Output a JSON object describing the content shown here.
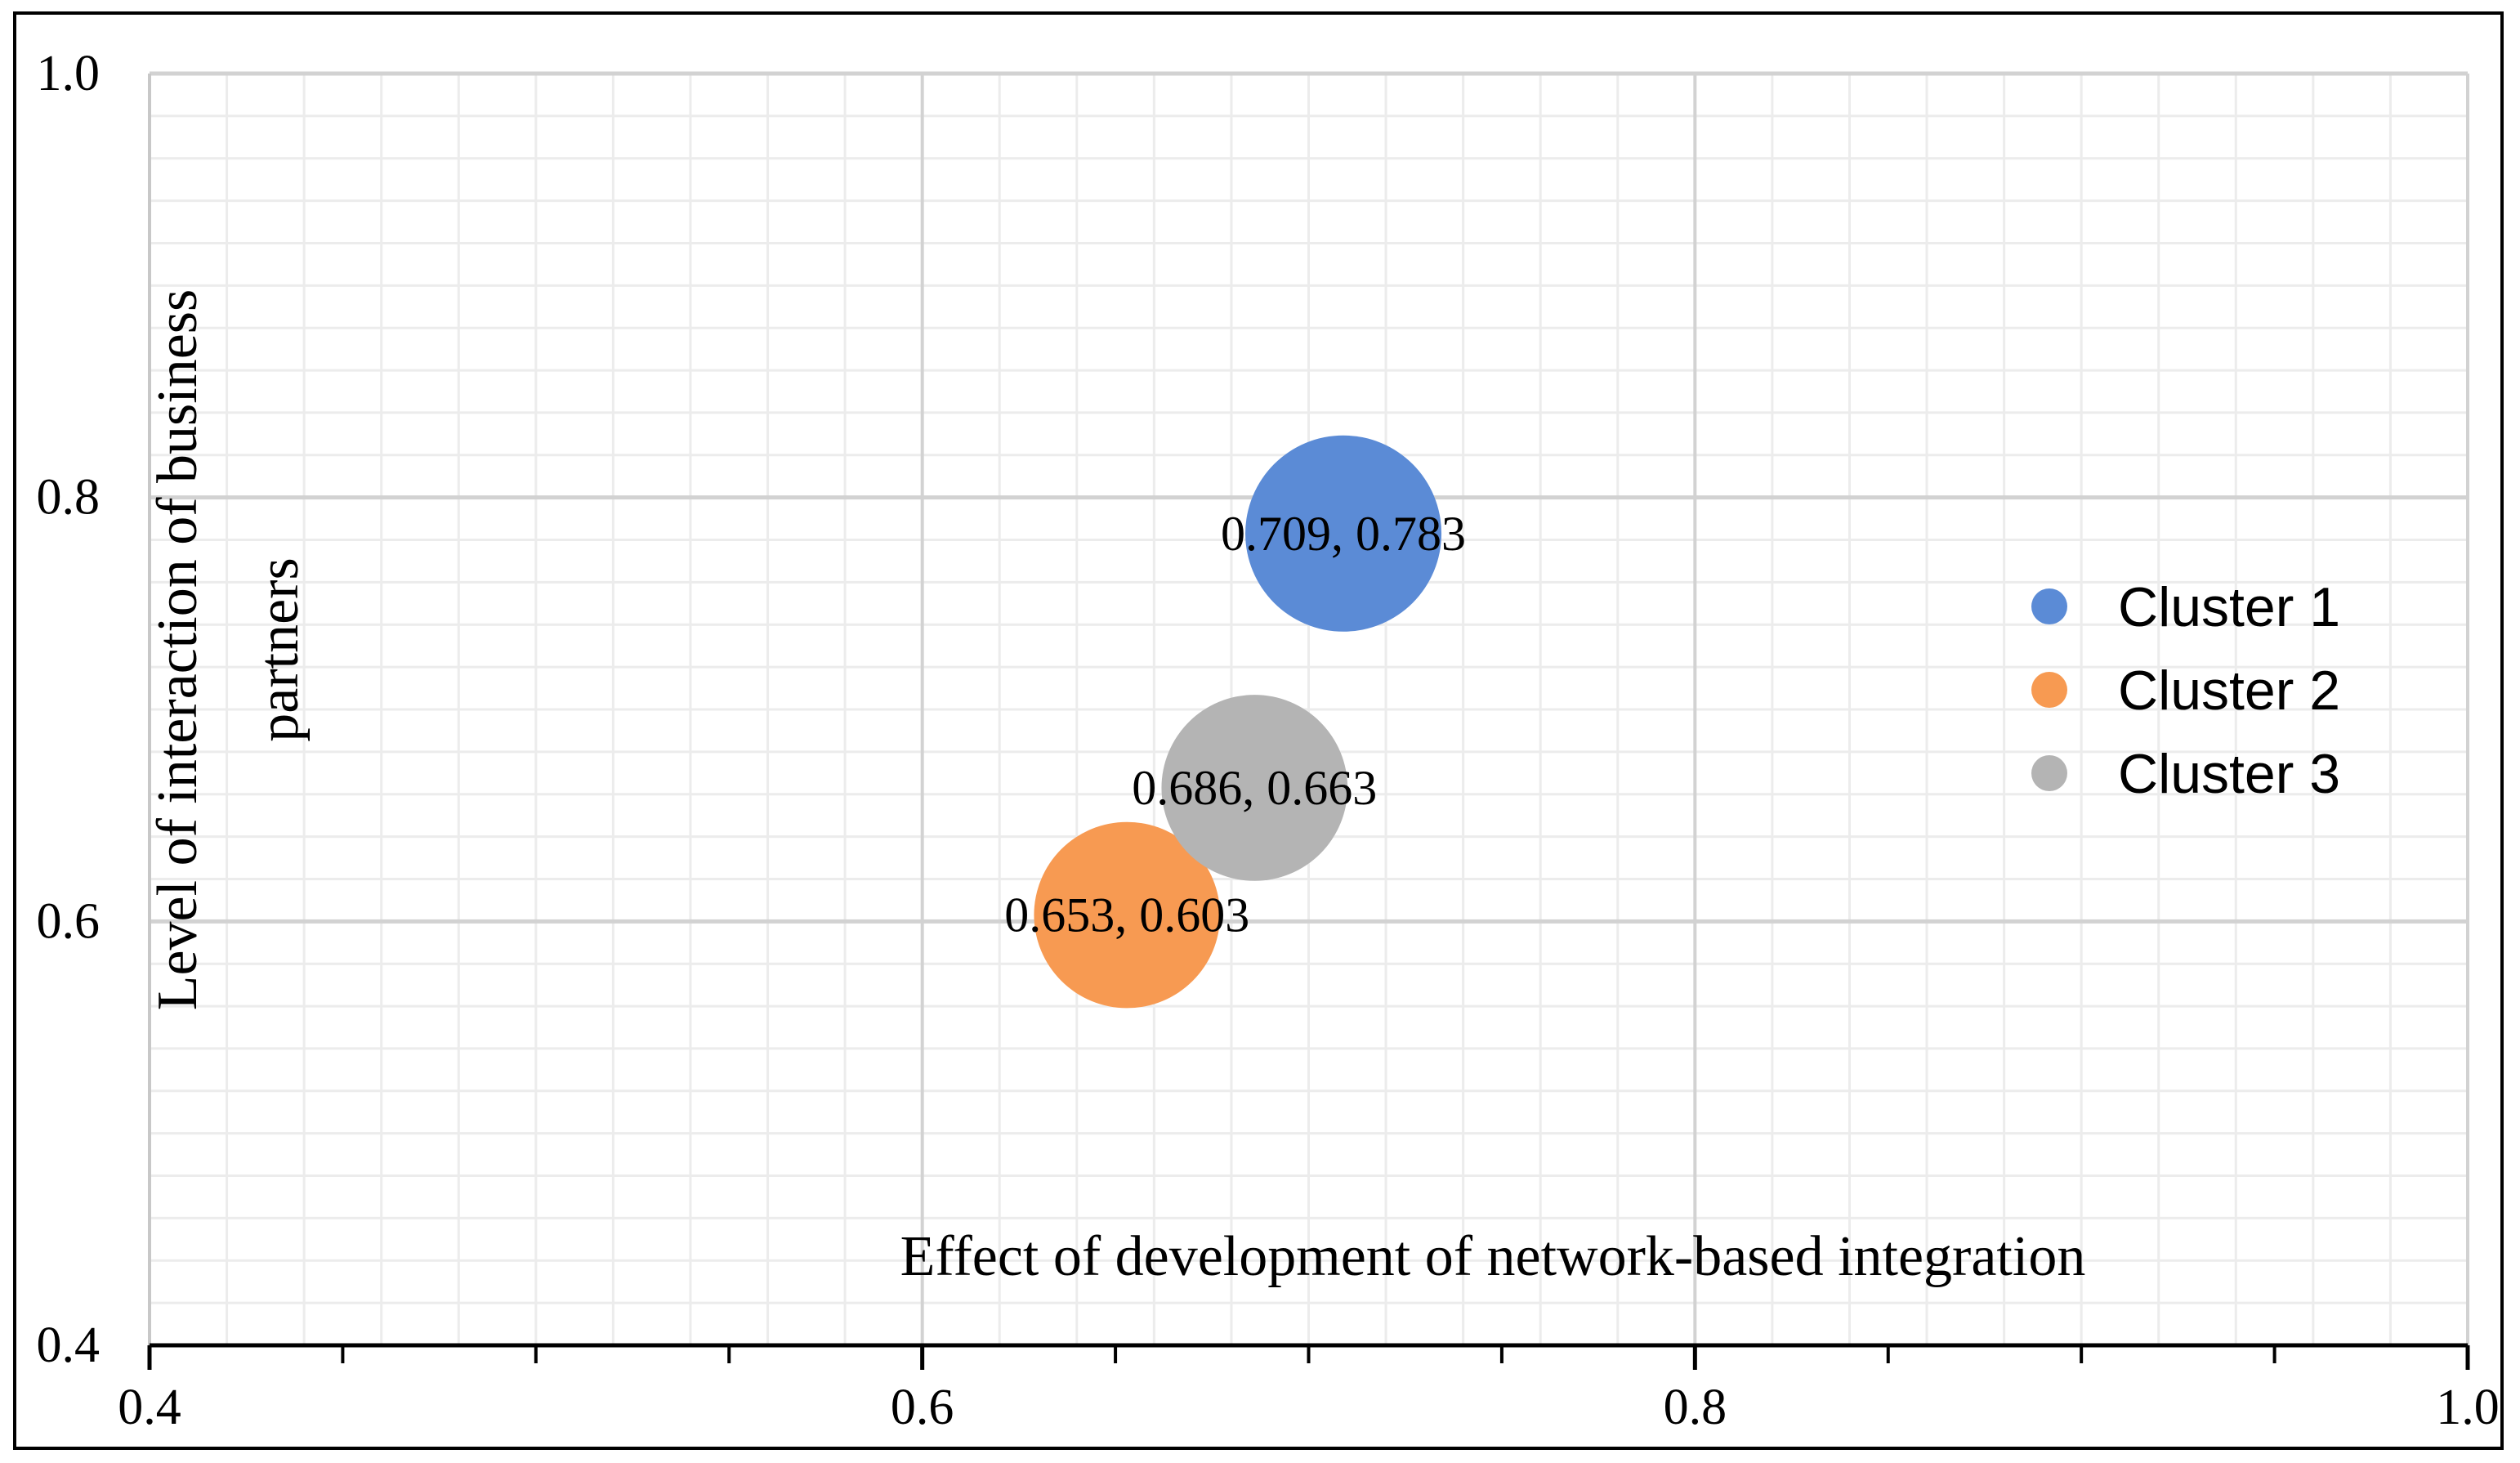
{
  "chart_data": {
    "type": "bubble",
    "title": "",
    "xlabel": "Effect of development of network-based integration",
    "ylabel": "Level of interaction of business partners",
    "ylabel_lines": [
      "Level of interaction of business",
      "partners"
    ],
    "xlim": [
      0.4,
      1.0
    ],
    "ylim": [
      0.4,
      1.0
    ],
    "x_major_ticks": [
      0.4,
      0.6,
      0.8,
      1.0
    ],
    "y_major_ticks": [
      0.4,
      0.6,
      0.8,
      1.0
    ],
    "x_tick_labels": [
      "0.4",
      "0.6",
      "0.8",
      "1.0"
    ],
    "y_tick_labels": [
      "0.4",
      "0.6",
      "0.8",
      "1.0"
    ],
    "x_minor_step": 0.02,
    "y_minor_step": 0.02,
    "grid": true,
    "legend_position": "right",
    "series": [
      {
        "name": "Cluster 1",
        "x": 0.709,
        "y": 0.783,
        "label": "0.709, 0.783",
        "color": "#5B8BD6",
        "bubble_size": 1.0
      },
      {
        "name": "Cluster 2",
        "x": 0.653,
        "y": 0.603,
        "label": "0.653, 0.603",
        "color": "#F79A52",
        "bubble_size": 0.9
      },
      {
        "name": "Cluster 3",
        "x": 0.686,
        "y": 0.663,
        "label": "0.686, 0.663",
        "color": "#B4B4B4",
        "bubble_size": 0.9
      }
    ]
  }
}
